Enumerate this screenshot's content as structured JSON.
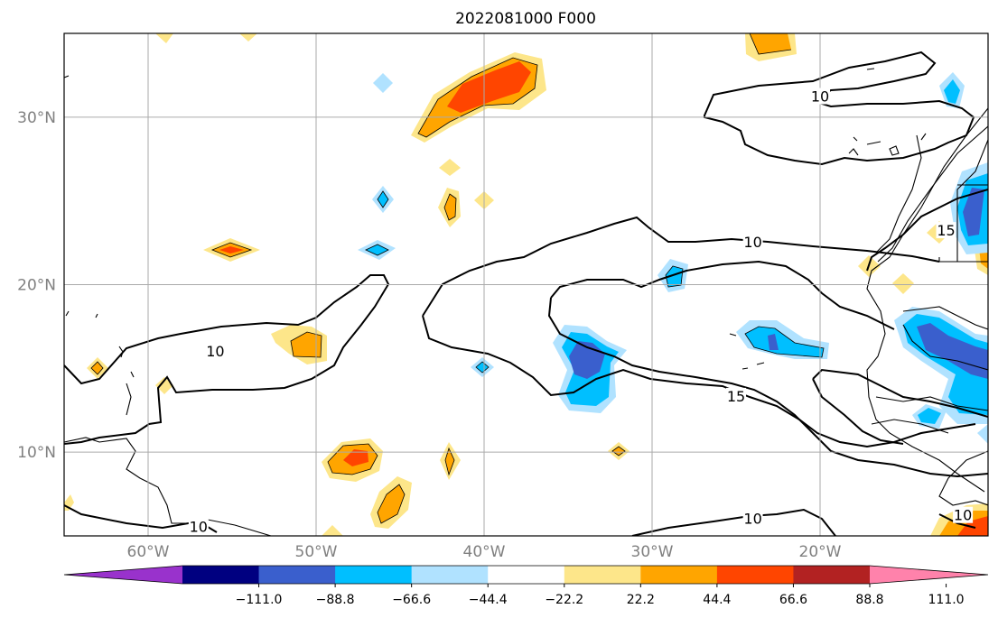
{
  "title": "2022081000 F000",
  "map": {
    "lon_range": [
      -65,
      -10
    ],
    "lat_range": [
      5,
      35
    ],
    "lon_ticks": [
      {
        "value": -60,
        "label": "60°W"
      },
      {
        "value": -50,
        "label": "50°W"
      },
      {
        "value": -40,
        "label": "40°W"
      },
      {
        "value": -30,
        "label": "30°W"
      },
      {
        "value": -20,
        "label": "20°W"
      }
    ],
    "lat_ticks": [
      {
        "value": 10,
        "label": "10°N"
      },
      {
        "value": 20,
        "label": "20°N"
      },
      {
        "value": 30,
        "label": "30°N"
      }
    ],
    "grid": true
  },
  "contour_labels": [
    {
      "text": "10",
      "lon": -56.0,
      "lat": 16.0
    },
    {
      "text": "10",
      "lon": -24.0,
      "lat": 22.5
    },
    {
      "text": "15",
      "lon": -25.0,
      "lat": 13.3
    },
    {
      "text": "10",
      "lon": -20.0,
      "lat": 31.2
    },
    {
      "text": "15",
      "lon": -12.5,
      "lat": 23.2
    },
    {
      "text": "10",
      "lon": -24.0,
      "lat": 6.0
    },
    {
      "text": "10",
      "lon": -57.0,
      "lat": 5.5
    },
    {
      "text": "10",
      "lon": -11.5,
      "lat": 6.2
    }
  ],
  "colorbar": {
    "ticks": [
      "−111.0",
      "−88.8",
      "−66.6",
      "−44.4",
      "−22.2",
      "22.2",
      "44.4",
      "66.6",
      "88.8",
      "111.0"
    ],
    "colors": [
      "#9932cc",
      "#000080",
      "#3a5fcd",
      "#00bfff",
      "#b0e2ff",
      "#ffffff",
      "#fde68a",
      "#ffa500",
      "#ff4500",
      "#b22222",
      "#ff82ab"
    ],
    "extend": "both"
  }
}
